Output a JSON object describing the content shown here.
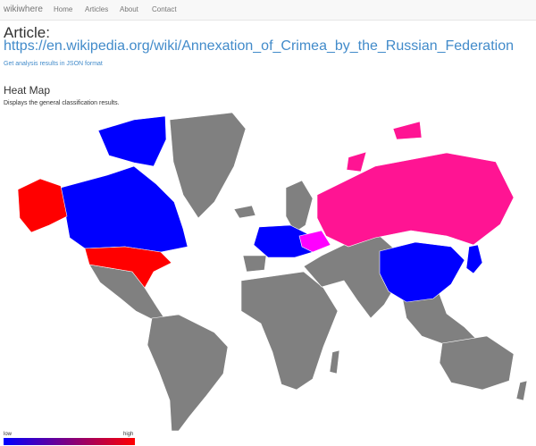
{
  "navbar": {
    "brand": "wikiwhere",
    "links": [
      "Home",
      "Articles",
      "About",
      "Contact"
    ]
  },
  "article": {
    "heading": "Article:",
    "url": "https://en.wikipedia.org/wiki/Annexation_of_Crimea_by_the_Russian_Federation",
    "json_link": "Get analysis results in JSON format"
  },
  "heatmap": {
    "title": "Heat Map",
    "description": "Displays the general classification results.",
    "legend": {
      "low": "low",
      "high": "high"
    }
  },
  "colors": {
    "low": "#0000ff",
    "mid": "#ff00ff",
    "high": "#ff0000",
    "max": "#ff1493",
    "no_data": "#808080",
    "link": "#428bca"
  }
}
